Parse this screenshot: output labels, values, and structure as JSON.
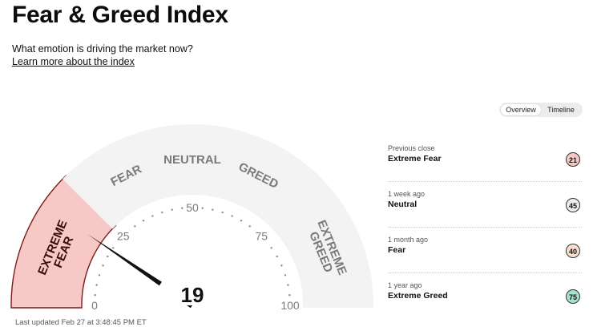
{
  "header": {
    "title": "Fear & Greed Index",
    "subtitle": "What emotion is driving the market now?",
    "learn_more": "Learn more about the index"
  },
  "toggle": {
    "overview": "Overview",
    "timeline": "Timeline",
    "active": "Overview"
  },
  "gauge": {
    "value": "19",
    "current_value": 19,
    "sections": {
      "extreme_fear": [
        "EXTREME",
        "FEAR"
      ],
      "fear": "FEAR",
      "neutral": "NEUTRAL",
      "greed": "GREED",
      "extreme_greed": [
        "EXTREME",
        "GREED"
      ]
    },
    "ticks": [
      "0",
      "25",
      "50",
      "75",
      "100"
    ],
    "colors": {
      "active_fill": "#f6c8c6",
      "active_border": "#7a1c1c",
      "inactive_fill": "#f3f3f3",
      "label_text": "#7a7a7a",
      "active_label": "#3a0c0c"
    }
  },
  "last_updated": "Last updated Feb 27 at 3:48:45 PM ET",
  "history": [
    {
      "period": "Previous close",
      "rating": "Extreme Fear",
      "value": "21",
      "color": "#f6c8c6"
    },
    {
      "period": "1 week ago",
      "rating": "Neutral",
      "value": "45",
      "color": "#ededed"
    },
    {
      "period": "1 month ago",
      "rating": "Fear",
      "value": "40",
      "color": "#fbe0cf"
    },
    {
      "period": "1 year ago",
      "rating": "Extreme Greed",
      "value": "75",
      "color": "#a7e3cc"
    }
  ]
}
